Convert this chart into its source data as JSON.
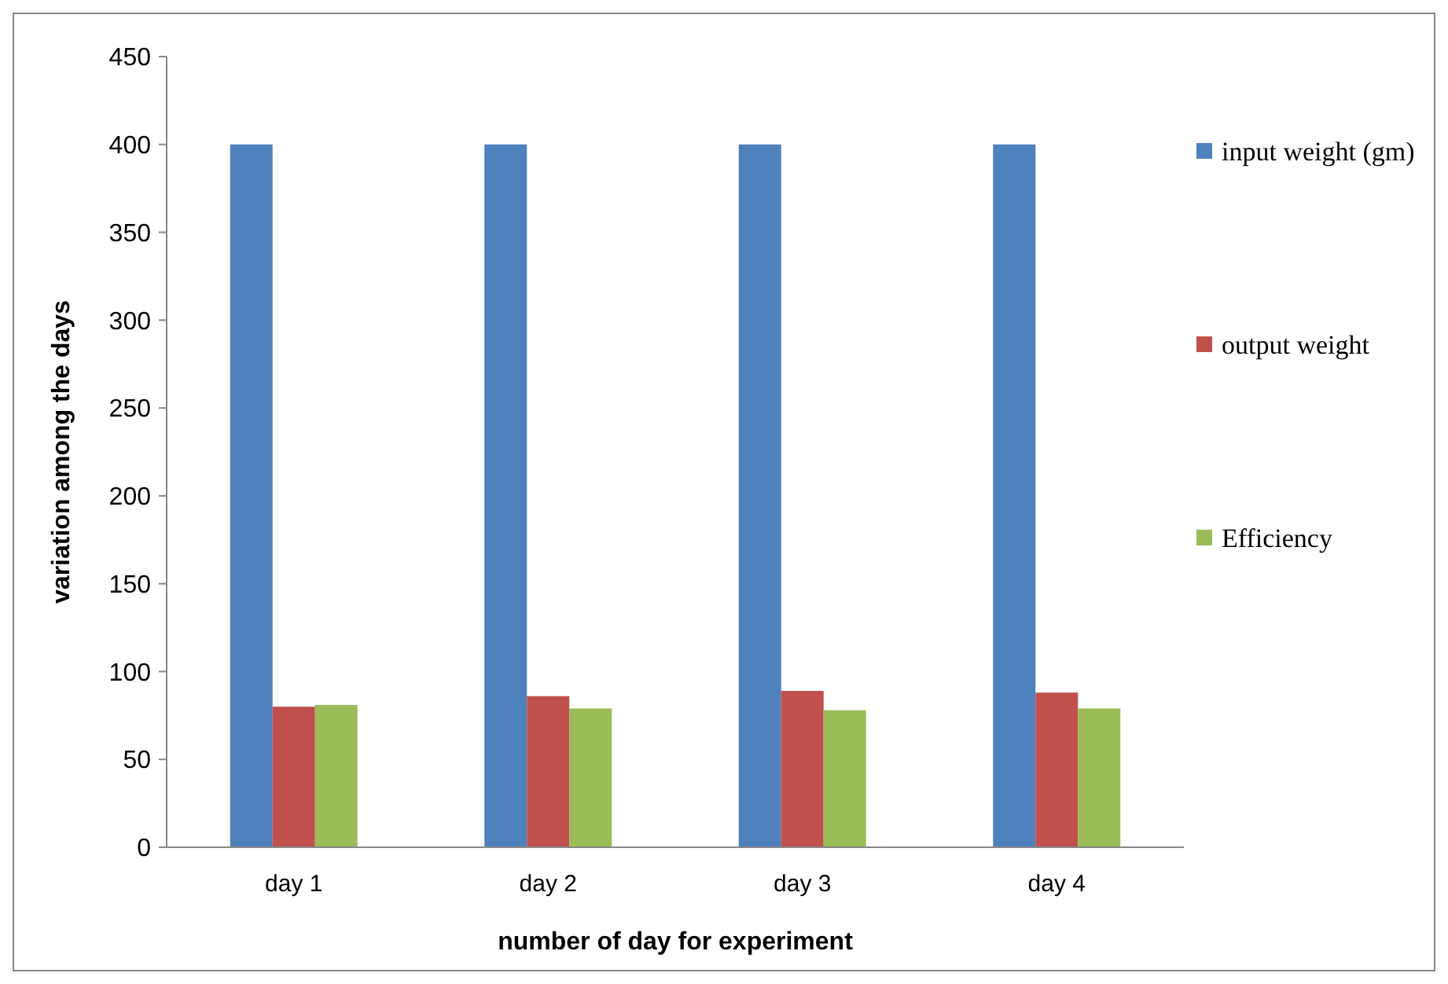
{
  "chart_data": {
    "type": "bar",
    "xlabel": "number of day for experiment",
    "ylabel": "variation among the days",
    "categories": [
      "day 1",
      "day 2",
      "day 3",
      "day 4"
    ],
    "series": [
      {
        "name": "input weight (gm)",
        "color": "#4f81bd",
        "values": [
          400,
          400,
          400,
          400
        ]
      },
      {
        "name": "output weight",
        "color": "#c0504d",
        "values": [
          80,
          86,
          89,
          88
        ]
      },
      {
        "name": "Efficiency",
        "color": "#9bbb59",
        "values": [
          81,
          79,
          78,
          79
        ]
      }
    ],
    "ylim": [
      0,
      450
    ],
    "yticks": [
      0,
      50,
      100,
      150,
      200,
      250,
      300,
      350,
      400,
      450
    ],
    "grid": false,
    "legend": "right"
  }
}
